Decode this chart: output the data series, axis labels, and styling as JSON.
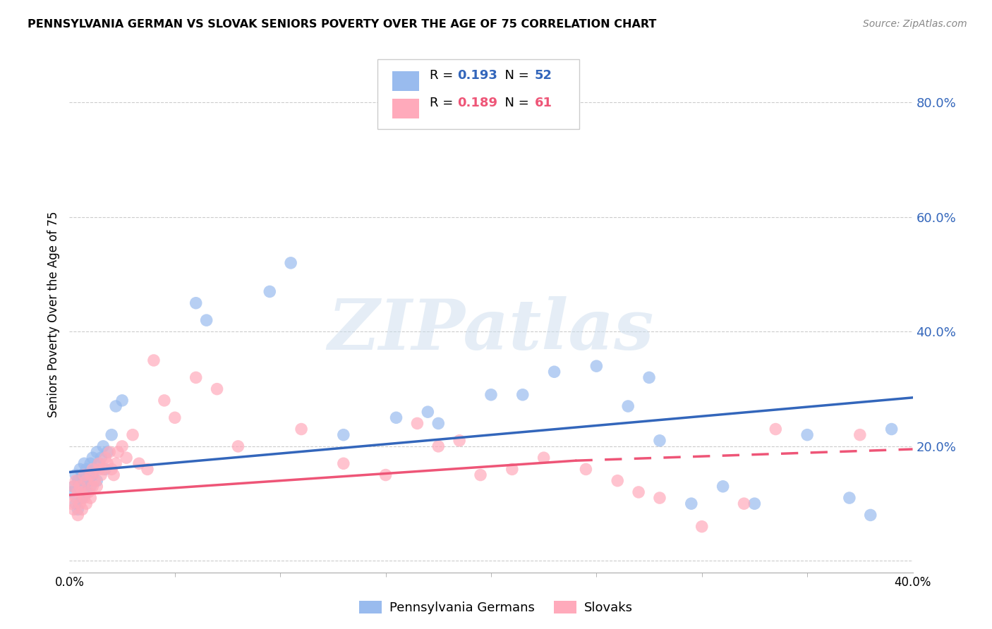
{
  "title": "PENNSYLVANIA GERMAN VS SLOVAK SENIORS POVERTY OVER THE AGE OF 75 CORRELATION CHART",
  "source": "Source: ZipAtlas.com",
  "ylabel": "Seniors Poverty Over the Age of 75",
  "xlim": [
    0.0,
    0.4
  ],
  "ylim": [
    -0.02,
    0.88
  ],
  "yticks": [
    0.0,
    0.2,
    0.4,
    0.6,
    0.8
  ],
  "ytick_labels": [
    "",
    "20.0%",
    "40.0%",
    "60.0%",
    "80.0%"
  ],
  "xticks": [
    0.0,
    0.4
  ],
  "xtick_labels": [
    "0.0%",
    "40.0%"
  ],
  "background_color": "#ffffff",
  "grid_color": "#cccccc",
  "blue_color": "#99bbee",
  "pink_color": "#ffaabb",
  "blue_line_color": "#3366bb",
  "pink_line_color": "#ee5577",
  "legend_R_blue": "0.193",
  "legend_N_blue": "52",
  "legend_R_pink": "0.189",
  "legend_N_pink": "61",
  "watermark": "ZIPatlas",
  "blue_line_start_y": 0.155,
  "blue_line_end_y": 0.285,
  "pink_line_start_y": 0.115,
  "pink_line_solid_end_x": 0.24,
  "pink_line_solid_end_y": 0.175,
  "pink_line_end_y": 0.195,
  "pa_german_x": [
    0.001,
    0.002,
    0.003,
    0.003,
    0.004,
    0.004,
    0.005,
    0.005,
    0.006,
    0.006,
    0.007,
    0.007,
    0.008,
    0.008,
    0.009,
    0.01,
    0.01,
    0.011,
    0.011,
    0.012,
    0.013,
    0.013,
    0.014,
    0.015,
    0.016,
    0.017,
    0.018,
    0.02,
    0.022,
    0.025,
    0.06,
    0.065,
    0.095,
    0.105,
    0.13,
    0.155,
    0.17,
    0.175,
    0.2,
    0.215,
    0.23,
    0.25,
    0.265,
    0.275,
    0.28,
    0.295,
    0.31,
    0.325,
    0.35,
    0.37,
    0.38,
    0.39
  ],
  "pa_german_y": [
    0.12,
    0.13,
    0.1,
    0.15,
    0.09,
    0.14,
    0.13,
    0.16,
    0.11,
    0.15,
    0.14,
    0.17,
    0.12,
    0.16,
    0.14,
    0.13,
    0.17,
    0.15,
    0.18,
    0.16,
    0.14,
    0.19,
    0.17,
    0.18,
    0.2,
    0.16,
    0.19,
    0.22,
    0.27,
    0.28,
    0.45,
    0.42,
    0.47,
    0.52,
    0.22,
    0.25,
    0.26,
    0.24,
    0.29,
    0.29,
    0.33,
    0.34,
    0.27,
    0.32,
    0.21,
    0.1,
    0.13,
    0.1,
    0.22,
    0.11,
    0.08,
    0.23
  ],
  "slovak_x": [
    0.001,
    0.002,
    0.002,
    0.003,
    0.003,
    0.004,
    0.004,
    0.005,
    0.005,
    0.006,
    0.006,
    0.007,
    0.007,
    0.008,
    0.008,
    0.009,
    0.01,
    0.01,
    0.011,
    0.011,
    0.012,
    0.013,
    0.014,
    0.014,
    0.015,
    0.016,
    0.017,
    0.018,
    0.019,
    0.02,
    0.021,
    0.022,
    0.023,
    0.025,
    0.027,
    0.03,
    0.033,
    0.037,
    0.04,
    0.045,
    0.05,
    0.06,
    0.07,
    0.08,
    0.11,
    0.13,
    0.15,
    0.165,
    0.175,
    0.185,
    0.195,
    0.21,
    0.225,
    0.245,
    0.26,
    0.27,
    0.28,
    0.3,
    0.32,
    0.335,
    0.375
  ],
  "slovak_y": [
    0.1,
    0.09,
    0.13,
    0.11,
    0.14,
    0.08,
    0.12,
    0.1,
    0.13,
    0.09,
    0.12,
    0.11,
    0.15,
    0.1,
    0.14,
    0.12,
    0.11,
    0.15,
    0.13,
    0.16,
    0.14,
    0.13,
    0.16,
    0.17,
    0.15,
    0.16,
    0.18,
    0.17,
    0.19,
    0.16,
    0.15,
    0.17,
    0.19,
    0.2,
    0.18,
    0.22,
    0.17,
    0.16,
    0.35,
    0.28,
    0.25,
    0.32,
    0.3,
    0.2,
    0.23,
    0.17,
    0.15,
    0.24,
    0.2,
    0.21,
    0.15,
    0.16,
    0.18,
    0.16,
    0.14,
    0.12,
    0.11,
    0.06,
    0.1,
    0.23,
    0.22
  ]
}
